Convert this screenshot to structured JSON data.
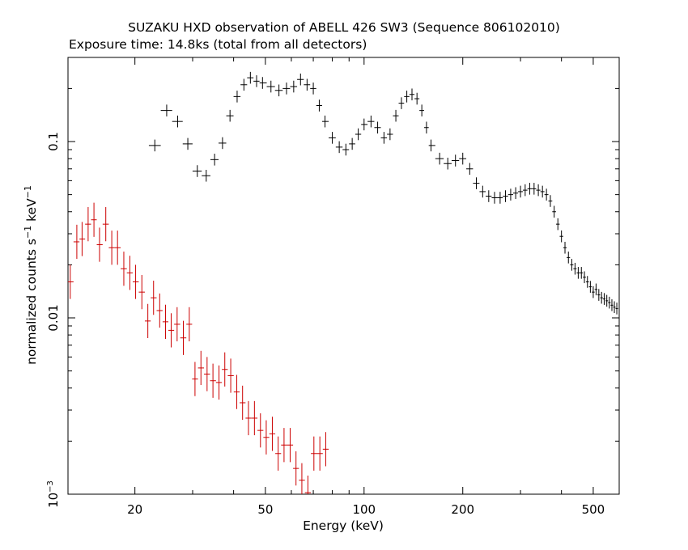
{
  "chart_data": {
    "type": "scatter",
    "title": "SUZAKU HXD observation of ABELL 426 SW3 (Sequence 806102010)",
    "subtitle": "Exposure time: 14.8ks (total from all detectors)",
    "xlabel": "Energy (keV)",
    "ylabel": {
      "text": "normalized counts s",
      "sup1": "−1",
      "mid": " keV",
      "sup2": "−1"
    },
    "x_scale": "log",
    "y_scale": "log",
    "xlim": [
      12.5,
      600
    ],
    "ylim": [
      0.001,
      0.3
    ],
    "x_ticks": [
      {
        "value": 20,
        "label": "20"
      },
      {
        "value": 50,
        "label": "50"
      },
      {
        "value": 100,
        "label": "100"
      },
      {
        "value": 200,
        "label": "200"
      },
      {
        "value": 500,
        "label": "500"
      }
    ],
    "y_ticks": [
      {
        "value": 0.001,
        "label": "10",
        "sup": "−3"
      },
      {
        "value": 0.01,
        "label": "0.01",
        "sup": ""
      },
      {
        "value": 0.1,
        "label": "0.1",
        "sup": ""
      }
    ],
    "series": [
      {
        "color": "#000000",
        "x": [
          23,
          25,
          27,
          29,
          31,
          33,
          35,
          37,
          39,
          41,
          43,
          45,
          47,
          49,
          52,
          55,
          58,
          61,
          64,
          67,
          70,
          73,
          76,
          80,
          84,
          88,
          92,
          96,
          100,
          105,
          110,
          115,
          120,
          125,
          130,
          135,
          140,
          145,
          150,
          155,
          160,
          170,
          180,
          190,
          200,
          210,
          220,
          230,
          240,
          250,
          260,
          270,
          280,
          290,
          300,
          310,
          320,
          330,
          340,
          350,
          360,
          370,
          380,
          390,
          400,
          410,
          420,
          430,
          440,
          450,
          460,
          470,
          480,
          490,
          500,
          510,
          520,
          530,
          540,
          550,
          560,
          570,
          580,
          590
        ],
        "y": [
          0.095,
          0.15,
          0.13,
          0.097,
          0.068,
          0.064,
          0.079,
          0.098,
          0.14,
          0.18,
          0.21,
          0.23,
          0.22,
          0.215,
          0.205,
          0.195,
          0.2,
          0.205,
          0.225,
          0.21,
          0.2,
          0.16,
          0.13,
          0.105,
          0.093,
          0.09,
          0.097,
          0.11,
          0.125,
          0.13,
          0.12,
          0.105,
          0.11,
          0.14,
          0.165,
          0.18,
          0.185,
          0.175,
          0.15,
          0.12,
          0.095,
          0.08,
          0.075,
          0.078,
          0.08,
          0.07,
          0.058,
          0.052,
          0.049,
          0.048,
          0.048,
          0.049,
          0.05,
          0.051,
          0.052,
          0.053,
          0.054,
          0.054,
          0.053,
          0.052,
          0.05,
          0.046,
          0.04,
          0.034,
          0.029,
          0.025,
          0.022,
          0.02,
          0.019,
          0.018,
          0.018,
          0.017,
          0.016,
          0.015,
          0.014,
          0.0145,
          0.0135,
          0.013,
          0.0128,
          0.0125,
          0.0122,
          0.0118,
          0.0115,
          0.0113
        ]
      },
      {
        "color": "#cc0000",
        "x": [
          12.7,
          13.3,
          13.8,
          14.4,
          15.0,
          15.6,
          16.3,
          17.0,
          17.7,
          18.5,
          19.3,
          20.1,
          21.0,
          21.9,
          22.8,
          23.8,
          24.8,
          25.8,
          26.9,
          28.1,
          29.3,
          30.5,
          31.8,
          33.2,
          34.6,
          36.1,
          37.6,
          39.2,
          40.9,
          42.6,
          44.4,
          46.3,
          48.3,
          50.3,
          52.5,
          54.7,
          57.0,
          59.5,
          62.0,
          64.6,
          67.4,
          70.3,
          73.3,
          76.4
        ],
        "y": [
          0.016,
          0.027,
          0.028,
          0.034,
          0.036,
          0.026,
          0.034,
          0.025,
          0.025,
          0.019,
          0.018,
          0.016,
          0.014,
          0.0096,
          0.013,
          0.011,
          0.0095,
          0.0085,
          0.0092,
          0.0077,
          0.0092,
          0.0045,
          0.0052,
          0.0048,
          0.0044,
          0.0043,
          0.0051,
          0.0047,
          0.0038,
          0.0033,
          0.0027,
          0.0027,
          0.0023,
          0.0021,
          0.0022,
          0.0017,
          0.0019,
          0.0019,
          0.0014,
          0.0012,
          0.00102,
          0.0017,
          0.0017,
          0.0018
        ]
      }
    ]
  }
}
